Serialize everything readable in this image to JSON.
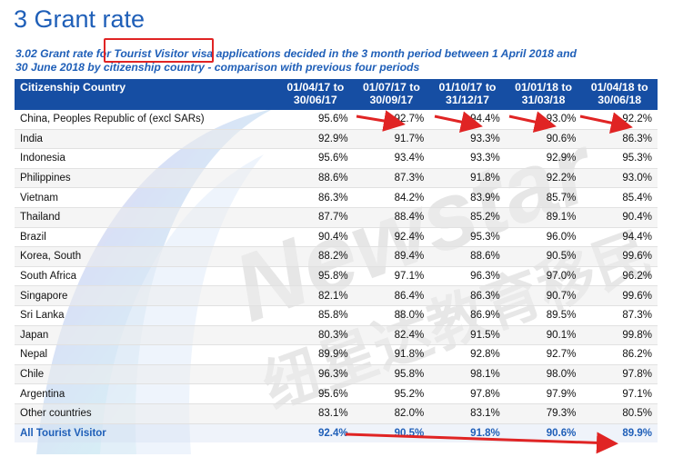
{
  "heading": "3 Grant rate",
  "subtitle": {
    "line1_prefix": "3.02 Grant rate for ",
    "highlight": "Tourist Visitor visa",
    "line1_suffix": " applications decided in the 3 month period between 1 April 2018 and",
    "line2": "30 June 2018 by citizenship country - comparison with previous four periods"
  },
  "watermark": {
    "latin": "Newstar",
    "chinese": "纽星达教育移民"
  },
  "table": {
    "header_country": "Citizenship Country",
    "periods": [
      {
        "from": "01/04/17 to",
        "to": "30/06/17"
      },
      {
        "from": "01/07/17 to",
        "to": "30/09/17"
      },
      {
        "from": "01/10/17 to",
        "to": "31/12/17"
      },
      {
        "from": "01/01/18 to",
        "to": "31/03/18"
      },
      {
        "from": "01/04/18 to",
        "to": "30/06/18"
      }
    ],
    "rows": [
      {
        "country": "China, Peoples Republic of (excl SARs)",
        "values": [
          "95.6%",
          "92.7%",
          "94.4%",
          "93.0%",
          "92.2%"
        ]
      },
      {
        "country": "India",
        "values": [
          "92.9%",
          "91.7%",
          "93.3%",
          "90.6%",
          "86.3%"
        ]
      },
      {
        "country": "Indonesia",
        "values": [
          "95.6%",
          "93.4%",
          "93.3%",
          "92.9%",
          "95.3%"
        ]
      },
      {
        "country": "Philippines",
        "values": [
          "88.6%",
          "87.3%",
          "91.8%",
          "92.2%",
          "93.0%"
        ]
      },
      {
        "country": "Vietnam",
        "values": [
          "86.3%",
          "84.2%",
          "83.9%",
          "85.7%",
          "85.4%"
        ]
      },
      {
        "country": "Thailand",
        "values": [
          "87.7%",
          "88.4%",
          "85.2%",
          "89.1%",
          "90.4%"
        ]
      },
      {
        "country": "Brazil",
        "values": [
          "90.4%",
          "92.4%",
          "95.3%",
          "96.0%",
          "94.4%"
        ]
      },
      {
        "country": "Korea, South",
        "values": [
          "88.2%",
          "89.4%",
          "88.6%",
          "90.5%",
          "99.6%"
        ]
      },
      {
        "country": "South Africa",
        "values": [
          "95.8%",
          "97.1%",
          "96.3%",
          "97.0%",
          "96.2%"
        ]
      },
      {
        "country": "Singapore",
        "values": [
          "82.1%",
          "86.4%",
          "86.3%",
          "90.7%",
          "99.6%"
        ]
      },
      {
        "country": "Sri Lanka",
        "values": [
          "85.8%",
          "88.0%",
          "86.9%",
          "89.5%",
          "87.3%"
        ]
      },
      {
        "country": "Japan",
        "values": [
          "80.3%",
          "82.4%",
          "91.5%",
          "90.1%",
          "99.8%"
        ]
      },
      {
        "country": "Nepal",
        "values": [
          "89.9%",
          "91.8%",
          "92.8%",
          "92.7%",
          "86.2%"
        ]
      },
      {
        "country": "Chile",
        "values": [
          "96.3%",
          "95.8%",
          "98.1%",
          "98.0%",
          "97.8%"
        ]
      },
      {
        "country": "Argentina",
        "values": [
          "95.6%",
          "95.2%",
          "97.8%",
          "97.9%",
          "97.1%"
        ]
      },
      {
        "country": "Other countries",
        "values": [
          "83.1%",
          "82.0%",
          "83.1%",
          "79.3%",
          "80.5%"
        ]
      }
    ],
    "total": {
      "country": "All Tourist Visitor",
      "values": [
        "92.4%",
        "90.5%",
        "91.8%",
        "90.6%",
        "89.9%"
      ]
    }
  },
  "colors": {
    "heading_blue": "#1f5fb8",
    "header_bg": "#164ea3",
    "annotation_red": "#e02424"
  }
}
